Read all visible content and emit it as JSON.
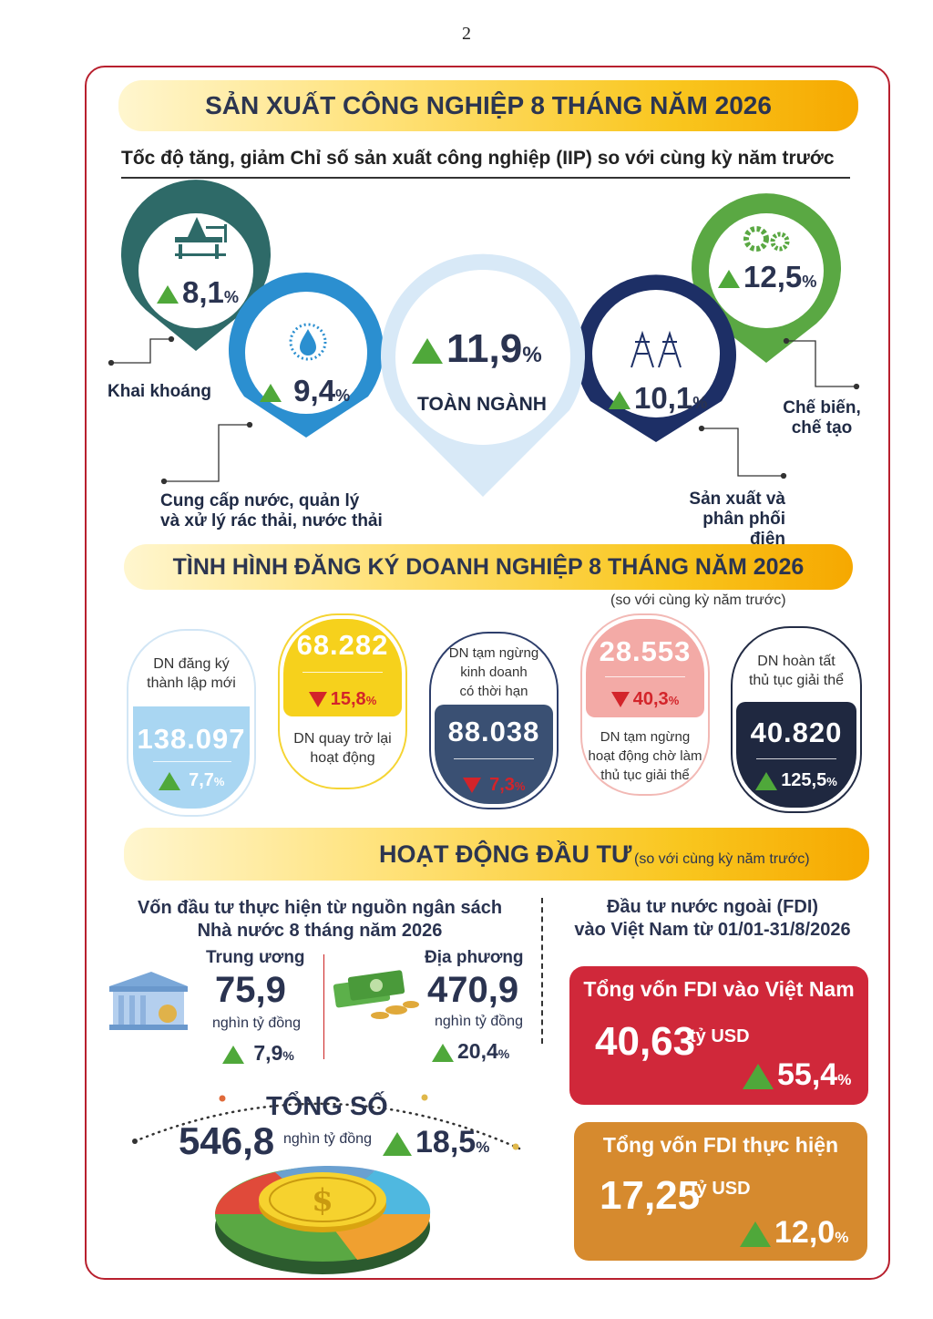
{
  "page_number": "2",
  "sections": {
    "industry_title": "SẢN XUẤT CÔNG NGHIỆP 8 THÁNG NĂM 2026",
    "industry_subtitle": "Tốc độ tăng, giảm Chỉ số sản xuất công nghiệp (IIP) so với cùng kỳ năm trước",
    "business_title": "TÌNH HÌNH ĐĂNG KÝ DOANH NGHIỆP 8 THÁNG NĂM 2026",
    "business_note": "(so với cùng kỳ năm trước)",
    "investment_title": "HOẠT ĐỘNG ĐẦU TƯ",
    "investment_note": "(so với cùng kỳ năm trước)"
  },
  "iip": {
    "mining": {
      "value": "8,1",
      "unit": "%",
      "label": "Khai khoáng",
      "color": "#2e6a68"
    },
    "water": {
      "value": "9,4",
      "unit": "%",
      "label1": "Cung cấp nước, quản lý",
      "label2": "và xử lý rác thải, nước thải",
      "color": "#2b8fd0"
    },
    "total": {
      "value": "11,9",
      "unit": "%",
      "label": "TOÀN NGÀNH",
      "color": "#d8e9f7"
    },
    "electricity": {
      "value": "10,1",
      "unit": "%",
      "label1": "Sản xuất và",
      "label2": "phân phối điện",
      "color": "#1d2f66"
    },
    "manufacturing": {
      "value": "12,5",
      "unit": "%",
      "label1": "Chế biến,",
      "label2": "chế tạo",
      "color": "#5aa843"
    }
  },
  "business": {
    "new": {
      "label1": "DN đăng ký",
      "label2": "thành lập mới",
      "value": "138.097",
      "change": "7,7",
      "unit": "%"
    },
    "returning": {
      "value": "68.282",
      "change": "15,8",
      "unit": "%",
      "label1": "DN quay trở lại",
      "label2": "hoạt động"
    },
    "suspended": {
      "label1": "DN tạm ngừng",
      "label2": "kinh doanh",
      "label3": "có thời hạn",
      "value": "88.038",
      "change": "7,3",
      "unit": "%"
    },
    "awaiting": {
      "value": "28.553",
      "change": "40,3",
      "unit": "%",
      "label1": "DN tạm ngừng",
      "label2": "hoạt động chờ làm",
      "label3": "thủ tục giải thể"
    },
    "dissolved": {
      "label1": "DN hoàn tất",
      "label2": "thủ tục giải thể",
      "value": "40.820",
      "change": "125,5",
      "unit": "%"
    }
  },
  "investment": {
    "budget_title1": "Vốn đầu tư thực hiện từ nguồn ngân sách",
    "budget_title2": "Nhà nước 8 tháng năm 2026",
    "central": {
      "label": "Trung ương",
      "value": "75,9",
      "unit": "nghìn tỷ đồng",
      "change": "7,9",
      "pct": "%"
    },
    "local": {
      "label": "Địa phương",
      "value": "470,9",
      "unit": "nghìn tỷ đồng",
      "change": "20,4",
      "pct": "%"
    },
    "total": {
      "label": "TỔNG SỐ",
      "value": "546,8",
      "unit": "nghìn tỷ đồng",
      "change": "18,5",
      "pct": "%"
    },
    "fdi_title1": "Đầu tư nước ngoài (FDI)",
    "fdi_title2": "vào Việt Nam từ 01/01-31/8/2026",
    "fdi_registered": {
      "label": "Tổng vốn FDI vào Việt Nam",
      "value": "40,63",
      "unit": "tỷ USD",
      "change": "55,4",
      "pct": "%",
      "color": "#d0283a"
    },
    "fdi_disbursed": {
      "label": "Tổng vốn FDI thực hiện",
      "value": "17,25",
      "unit": "tỷ USD",
      "change": "12,0",
      "pct": "%",
      "color": "#d68a2e"
    }
  }
}
